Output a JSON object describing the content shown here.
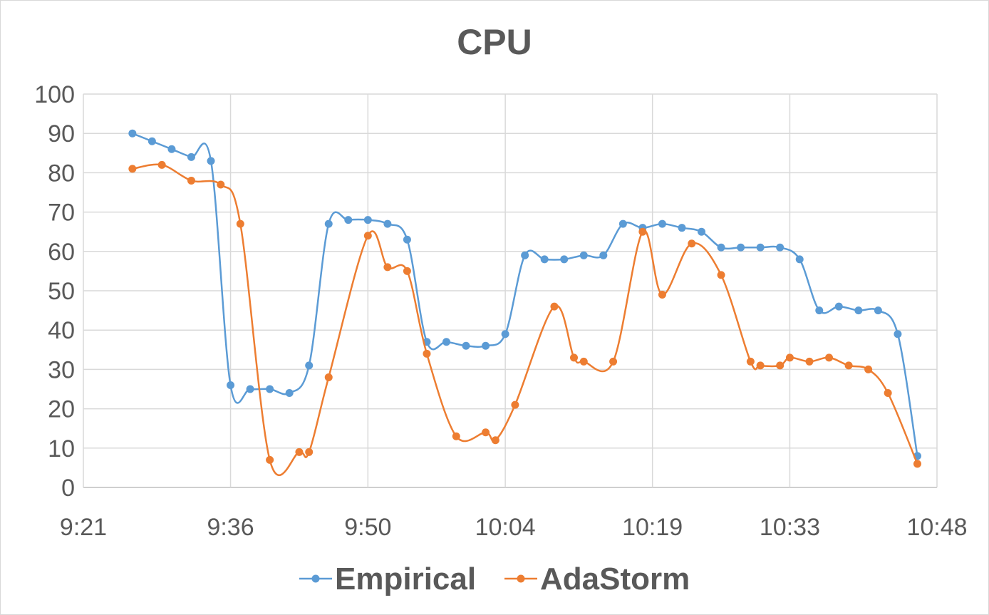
{
  "chart_data": {
    "type": "line",
    "title": "CPU",
    "xlabel": "",
    "ylabel": "",
    "ylim": [
      0,
      100
    ],
    "y_ticks": [
      "0",
      "10",
      "20",
      "30",
      "40",
      "50",
      "60",
      "70",
      "80",
      "90",
      "100"
    ],
    "x_ticks": [
      "9:21",
      "9:36",
      "9:50",
      "10:04",
      "10:19",
      "10:33",
      "10:48"
    ],
    "x_unit": "time (HH:MM)",
    "xlim": [
      "9:21",
      "10:48"
    ],
    "grid": true,
    "legend": "bottom",
    "series": [
      {
        "name": "Empirical",
        "color": "#5b9bd5",
        "points": [
          [
            "9:26",
            90
          ],
          [
            "9:28",
            88
          ],
          [
            "9:30",
            86
          ],
          [
            "9:32",
            84
          ],
          [
            "9:34",
            83
          ],
          [
            "9:36",
            26
          ],
          [
            "9:38",
            25
          ],
          [
            "9:40",
            25
          ],
          [
            "9:42",
            24
          ],
          [
            "9:44",
            31
          ],
          [
            "9:46",
            67
          ],
          [
            "9:48",
            68
          ],
          [
            "9:50",
            68
          ],
          [
            "9:52",
            67
          ],
          [
            "9:54",
            63
          ],
          [
            "9:56",
            37
          ],
          [
            "9:58",
            37
          ],
          [
            "10:00",
            36
          ],
          [
            "10:02",
            36
          ],
          [
            "10:04",
            39
          ],
          [
            "10:06",
            59
          ],
          [
            "10:08",
            58
          ],
          [
            "10:10",
            58
          ],
          [
            "10:12",
            59
          ],
          [
            "10:14",
            59
          ],
          [
            "10:16",
            67
          ],
          [
            "10:18",
            66
          ],
          [
            "10:20",
            67
          ],
          [
            "10:22",
            66
          ],
          [
            "10:24",
            65
          ],
          [
            "10:26",
            61
          ],
          [
            "10:28",
            61
          ],
          [
            "10:30",
            61
          ],
          [
            "10:32",
            61
          ],
          [
            "10:34",
            58
          ],
          [
            "10:36",
            45
          ],
          [
            "10:38",
            46
          ],
          [
            "10:40",
            45
          ],
          [
            "10:42",
            45
          ],
          [
            "10:44",
            39
          ],
          [
            "10:46",
            8
          ]
        ]
      },
      {
        "name": "AdaStorm",
        "color": "#ed7d31",
        "points": [
          [
            "9:26",
            81
          ],
          [
            "9:29",
            82
          ],
          [
            "9:32",
            78
          ],
          [
            "9:35",
            77
          ],
          [
            "9:37",
            67
          ],
          [
            "9:40",
            7
          ],
          [
            "9:43",
            9
          ],
          [
            "9:44",
            9
          ],
          [
            "9:46",
            28
          ],
          [
            "9:50",
            64
          ],
          [
            "9:52",
            56
          ],
          [
            "9:54",
            55
          ],
          [
            "9:56",
            34
          ],
          [
            "9:59",
            13
          ],
          [
            "10:02",
            14
          ],
          [
            "10:03",
            12
          ],
          [
            "10:05",
            21
          ],
          [
            "10:09",
            46
          ],
          [
            "10:11",
            33
          ],
          [
            "10:12",
            32
          ],
          [
            "10:15",
            32
          ],
          [
            "10:18",
            65
          ],
          [
            "10:20",
            49
          ],
          [
            "10:23",
            62
          ],
          [
            "10:26",
            54
          ],
          [
            "10:29",
            32
          ],
          [
            "10:30",
            31
          ],
          [
            "10:32",
            31
          ],
          [
            "10:33",
            33
          ],
          [
            "10:35",
            32
          ],
          [
            "10:37",
            33
          ],
          [
            "10:39",
            31
          ],
          [
            "10:41",
            30
          ],
          [
            "10:43",
            24
          ],
          [
            "10:46",
            6
          ]
        ]
      }
    ]
  }
}
